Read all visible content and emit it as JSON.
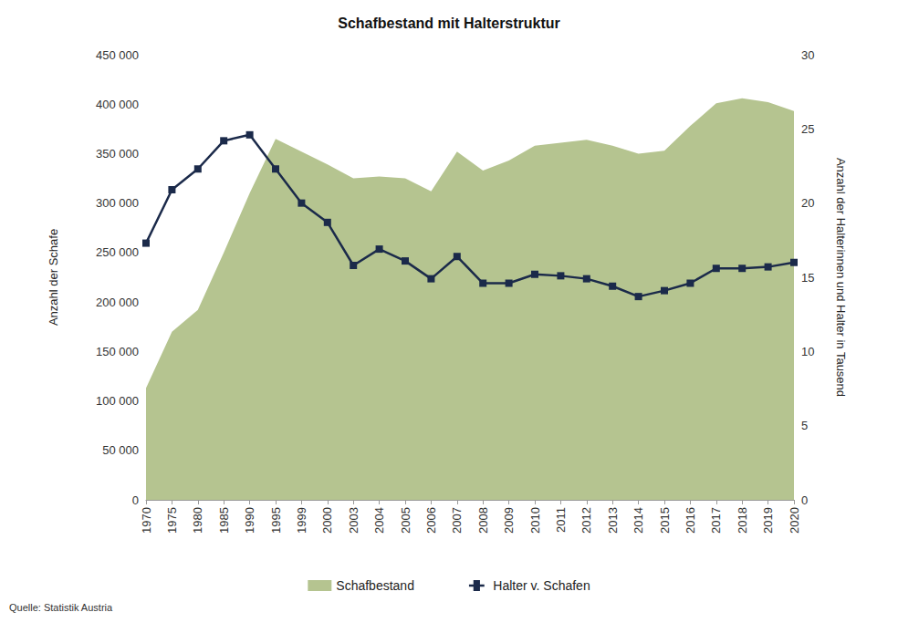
{
  "chart_data": {
    "type": "area",
    "title": "Schafbestand mit Halterstruktur",
    "y_label": "Anzahl der Schafe",
    "y2_label": "Anzahl der Halterinnen und Halter in Tausend",
    "annotations": [
      "Quelle: Statistik Austria"
    ],
    "categories": [
      "1970",
      "1975",
      "1980",
      "1985",
      "1990",
      "1995",
      "1999",
      "2000",
      "2003",
      "2004",
      "2005",
      "2006",
      "2007",
      "2008",
      "2009",
      "2010",
      "2011",
      "2012",
      "2013",
      "2014",
      "2015",
      "2016",
      "2017",
      "2018",
      "2019",
      "2020"
    ],
    "series": [
      {
        "name": "Schafbestand",
        "type": "area",
        "color": "#b5c490",
        "values": [
          113000,
          170000,
          192000,
          250000,
          310000,
          365000,
          352000,
          339000,
          325000,
          327000,
          325000,
          312000,
          352000,
          333000,
          343000,
          358000,
          361000,
          364000,
          358000,
          350000,
          353000,
          378000,
          401000,
          406000,
          402000,
          393000
        ]
      },
      {
        "name": "Halter v. Schafen",
        "type": "line",
        "axis": "y2",
        "color": "#1b2a4a",
        "marker": "square",
        "line_style": "solid",
        "values": [
          17.3,
          20.9,
          22.3,
          24.2,
          24.6,
          22.3,
          20.0,
          18.7,
          15.8,
          16.9,
          16.1,
          14.9,
          16.4,
          14.6,
          14.6,
          15.2,
          15.1,
          14.9,
          14.4,
          13.7,
          14.1,
          14.6,
          15.6,
          15.6,
          15.7,
          16.0
        ]
      }
    ],
    "ylim": [
      0,
      450000
    ],
    "yticks": [
      0,
      {
        "value": 50000,
        "label": "50 000"
      },
      {
        "value": 100000,
        "label": "100 000"
      },
      {
        "value": 150000,
        "label": "150 000"
      },
      {
        "value": 200000,
        "label": "200 000"
      },
      {
        "value": 250000,
        "label": "250 000"
      },
      {
        "value": 300000,
        "label": "300 000"
      },
      {
        "value": 350000,
        "label": "350 000"
      },
      {
        "value": 400000,
        "label": "400 000"
      },
      {
        "value": 450000,
        "label": "450 000"
      }
    ],
    "y2lim": [
      0,
      30
    ],
    "y2ticks": [
      0,
      5,
      10,
      15,
      20,
      25,
      30
    ],
    "grid": false,
    "legend": "bottom"
  }
}
